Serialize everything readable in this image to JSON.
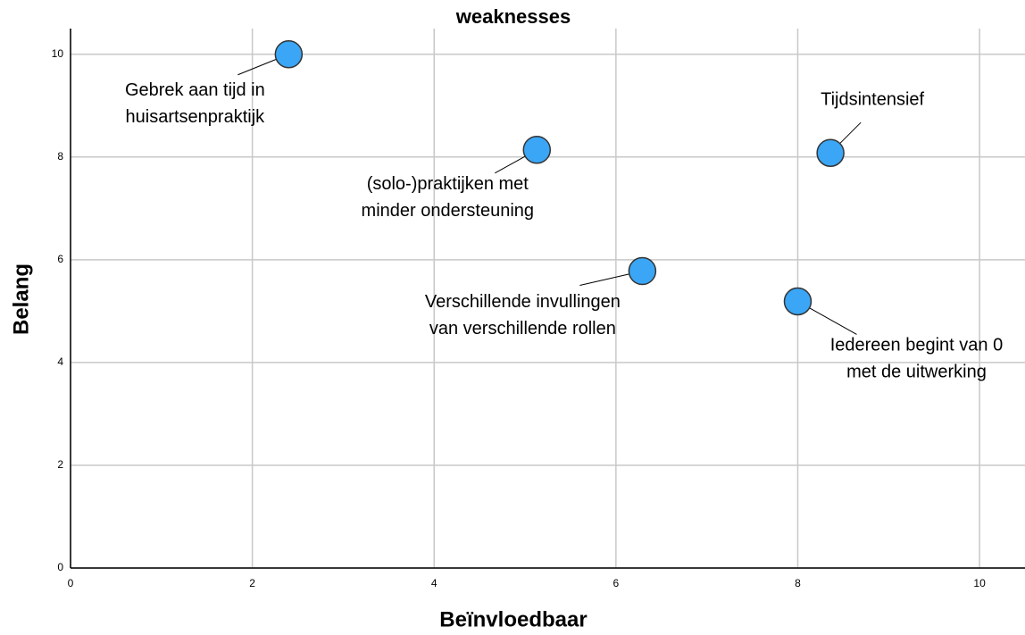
{
  "chart_data": {
    "type": "scatter",
    "title": "weaknesses",
    "x_label": "Beïnvloedbaar",
    "y_label": "Belang",
    "x": [
      2.4,
      5.13,
      8.36,
      6.29,
      8.0
    ],
    "y": [
      10.0,
      8.14,
      8.08,
      5.78,
      5.19
    ],
    "labels": [
      [
        "Gebrek aan tijd in",
        "huisartsenpraktijk"
      ],
      [
        "(solo-)praktijken met",
        "minder ondersteuning"
      ],
      [
        "Tijdsintensief"
      ],
      [
        "Verschillende invullingen",
        "van verschillende rollen"
      ],
      [
        "Iedereen begint van 0",
        "met de uitwerking"
      ]
    ],
    "color": "#3aa6f5",
    "xlim": [
      0,
      10.5
    ],
    "ylim": [
      0,
      10.5
    ],
    "xticks": [
      0,
      2,
      4,
      6,
      8,
      10
    ],
    "yticks": [
      0,
      2,
      4,
      6,
      8,
      10
    ],
    "grid": true
  }
}
